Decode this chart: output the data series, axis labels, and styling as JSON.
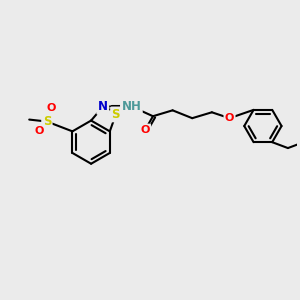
{
  "bg_color": "#ebebeb",
  "bond_color": "#000000",
  "bond_lw": 1.5,
  "figsize": [
    3.0,
    3.0
  ],
  "dpi": 100,
  "colors": {
    "S_thiazole": "#cccc00",
    "S_sulfonyl": "#cccc00",
    "N": "#0000cc",
    "O": "#ff0000",
    "NH": "#4d9999",
    "C": "#000000"
  }
}
